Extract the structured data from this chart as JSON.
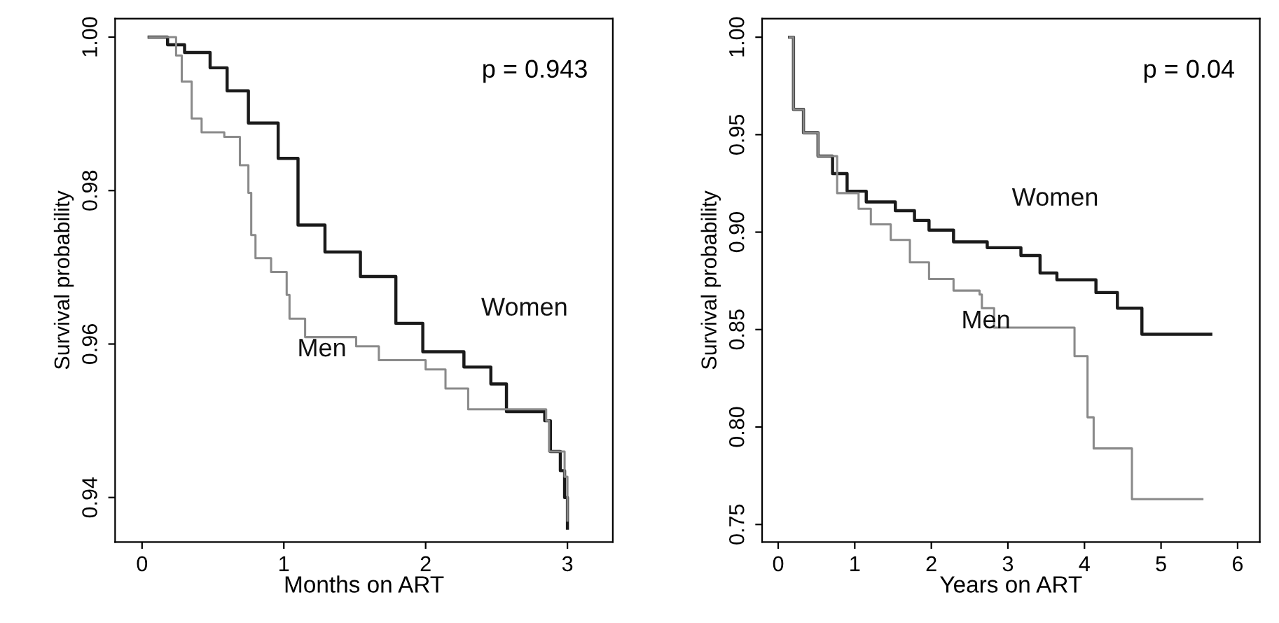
{
  "chart_data": [
    {
      "type": "step",
      "xlabel": "Months on ART",
      "ylabel": "Survival probability",
      "annotations": [
        "p = 0.943"
      ],
      "xlim": [
        -0.19,
        3.32
      ],
      "ylim": [
        0.9342,
        1.0024
      ],
      "xticks": [
        0,
        1,
        2,
        3
      ],
      "yticks": [
        {
          "value": 0.94,
          "label": "0.94"
        },
        {
          "value": 0.96,
          "label": "0.96"
        },
        {
          "value": 0.98,
          "label": "0.98"
        },
        {
          "value": 1.0,
          "label": "1.00"
        }
      ],
      "grid": false,
      "legend": false,
      "series": [
        {
          "name": "Women",
          "color": "#1a1a1a",
          "x": [
            0.05,
            0.18,
            0.3,
            0.48,
            0.6,
            0.75,
            0.96,
            1.1,
            1.29,
            1.54,
            1.79,
            1.98,
            2.27,
            2.46,
            2.57,
            2.84,
            2.88,
            2.95,
            2.98,
            3.0
          ],
          "values": [
            1.0,
            0.999,
            0.998,
            0.996,
            0.993,
            0.9888,
            0.9842,
            0.9755,
            0.972,
            0.9688,
            0.9627,
            0.959,
            0.957,
            0.9548,
            0.9512,
            0.95,
            0.946,
            0.9435,
            0.94,
            0.936
          ]
        },
        {
          "name": "Men",
          "color": "#8a8a8a",
          "x": [
            0.05,
            0.24,
            0.28,
            0.35,
            0.42,
            0.58,
            0.69,
            0.75,
            0.77,
            0.8,
            0.91,
            1.02,
            1.04,
            1.15,
            1.51,
            1.67,
            2.0,
            2.14,
            2.3,
            2.85,
            2.87,
            2.98,
            3.0
          ],
          "values": [
            1.0,
            0.9976,
            0.9942,
            0.9894,
            0.9876,
            0.987,
            0.9833,
            0.9797,
            0.9742,
            0.9712,
            0.9694,
            0.9664,
            0.9633,
            0.9609,
            0.9597,
            0.9579,
            0.9567,
            0.9542,
            0.9515,
            0.95,
            0.946,
            0.9427,
            0.937
          ]
        }
      ]
    },
    {
      "type": "step",
      "xlabel": "Years on ART",
      "ylabel": "Survival probability",
      "annotations": [
        "p = 0.04"
      ],
      "xlim": [
        -0.21,
        6.29
      ],
      "ylim": [
        0.741,
        1.0095
      ],
      "xticks": [
        0,
        1,
        2,
        3,
        4,
        5,
        6
      ],
      "yticks": [
        {
          "value": 0.75,
          "label": "0.75"
        },
        {
          "value": 0.8,
          "label": "0.80"
        },
        {
          "value": 0.85,
          "label": "0.85"
        },
        {
          "value": 0.9,
          "label": "0.90"
        },
        {
          "value": 0.95,
          "label": "0.95"
        },
        {
          "value": 1.0,
          "label": "1.00"
        }
      ],
      "grid": false,
      "legend": false,
      "series": [
        {
          "name": "Women",
          "color": "#1a1a1a",
          "x": [
            0.15,
            0.2,
            0.33,
            0.52,
            0.71,
            0.9,
            1.15,
            1.53,
            1.78,
            1.97,
            2.29,
            2.73,
            3.17,
            3.42,
            3.64,
            4.15,
            4.43,
            4.75,
            5.65
          ],
          "values": [
            1.0,
            0.963,
            0.951,
            0.939,
            0.93,
            0.921,
            0.9155,
            0.911,
            0.906,
            0.901,
            0.895,
            0.892,
            0.888,
            0.879,
            0.8755,
            0.869,
            0.861,
            0.8476,
            0.8476
          ]
        },
        {
          "name": "Men",
          "color": "#8a8a8a",
          "x": [
            0.15,
            0.2,
            0.33,
            0.52,
            0.77,
            1.05,
            1.21,
            1.47,
            1.72,
            1.97,
            2.29,
            2.63,
            2.66,
            2.82,
            3.87,
            4.04,
            4.12,
            4.62,
            5.54
          ],
          "values": [
            1.0,
            0.963,
            0.951,
            0.939,
            0.92,
            0.912,
            0.904,
            0.896,
            0.8845,
            0.876,
            0.87,
            0.868,
            0.861,
            0.851,
            0.8364,
            0.805,
            0.789,
            0.763,
            0.763
          ]
        }
      ]
    }
  ]
}
